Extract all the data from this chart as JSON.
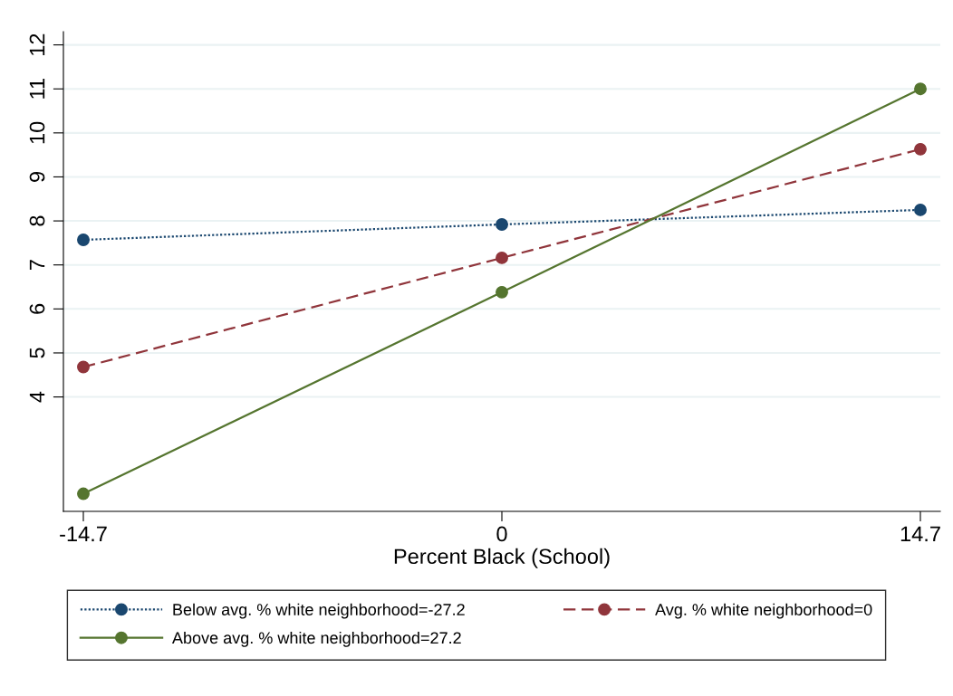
{
  "chart_data": {
    "type": "line",
    "xlabel": "Percent Black (School)",
    "x": [
      -14.7,
      0,
      14.7
    ],
    "series": [
      {
        "name": "Below avg. % white neighborhood=-27.2",
        "color": "#1a476f",
        "values": [
          7.57,
          7.92,
          8.25
        ],
        "line_style": "dotted"
      },
      {
        "name": "Avg. % white neighborhood=0",
        "color": "#90353b",
        "values": [
          4.68,
          7.16,
          9.63
        ],
        "line_style": "dashed"
      },
      {
        "name": "Above avg. % white neighborhood=27.2",
        "color": "#55752f",
        "values": [
          1.8,
          6.38,
          11.0
        ],
        "line_style": "solid"
      }
    ],
    "xlim": [
      -15.4,
      15.4
    ],
    "xticks": [
      -14.7,
      0,
      14.7
    ],
    "ylim": [
      1.4,
      12.3
    ],
    "yticks": [
      4,
      5,
      6,
      7,
      8,
      9,
      10,
      11,
      12
    ],
    "grid": "y",
    "legend": "bottom",
    "marker": "circle"
  }
}
